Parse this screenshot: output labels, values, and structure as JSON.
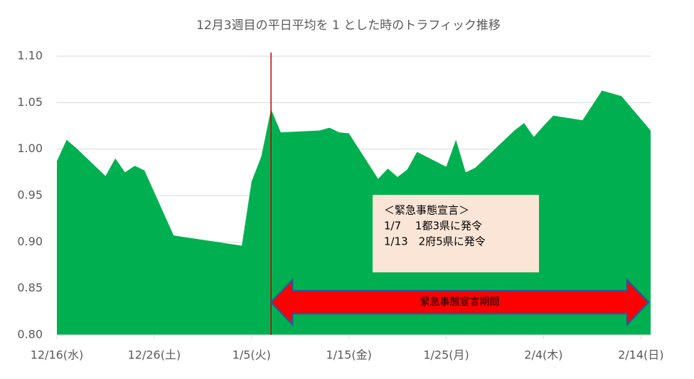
{
  "chart_data": {
    "type": "area",
    "title": "12月3週目の平日平均を 1 とした時のトラフィック推移",
    "x": [
      "12/16",
      "12/17",
      "12/18",
      "12/21",
      "12/22",
      "12/23",
      "12/24",
      "12/25",
      "12/28",
      "1/4",
      "1/5",
      "1/6",
      "1/7",
      "1/8",
      "1/12",
      "1/13",
      "1/14",
      "1/15",
      "1/18",
      "1/19",
      "1/20",
      "1/21",
      "1/22",
      "1/25",
      "1/26",
      "1/27",
      "1/28",
      "2/1",
      "2/2",
      "2/3",
      "2/4",
      "2/5",
      "2/8",
      "2/9",
      "2/10",
      "2/12",
      "2/15"
    ],
    "values": [
      0.987,
      1.01,
      1.001,
      0.971,
      0.99,
      0.975,
      0.982,
      0.977,
      0.907,
      0.896,
      0.965,
      0.992,
      1.043,
      1.018,
      1.02,
      1.023,
      1.018,
      1.017,
      0.968,
      0.979,
      0.97,
      0.978,
      0.997,
      0.981,
      1.01,
      0.975,
      0.98,
      1.02,
      1.028,
      1.013,
      1.025,
      1.036,
      1.031,
      1.047,
      1.063,
      1.057,
      1.02
    ],
    "color": "#00b050",
    "ylim": [
      0.8,
      1.1
    ],
    "yticks": [
      {
        "value": 0.8,
        "label": "0.80"
      },
      0.85,
      {
        "value": 0.9,
        "label": "0.90"
      },
      0.95,
      {
        "value": 1.0,
        "label": "1.00"
      },
      1.05,
      {
        "value": 1.1,
        "label": "1.10"
      }
    ],
    "xticks": [
      {
        "value": "12/16",
        "label": "12/16(水)"
      },
      {
        "value": "12/26",
        "label": "12/26(土)"
      },
      {
        "value": "1/5",
        "label": "1/5(火)"
      },
      {
        "value": "1/15",
        "label": "1/15(金)"
      },
      {
        "value": "1/25",
        "label": "1/25(月)"
      },
      {
        "value": "2/4",
        "label": "2/4(木)"
      },
      {
        "value": "2/14",
        "label": "2/14(日)"
      }
    ],
    "grid": true,
    "marker_line": {
      "x": "1/7",
      "color": "#c00000"
    },
    "annotation": {
      "lines": [
        "＜緊急事態宣言＞",
        "1/7　 1都3県に発令",
        "1/13　2府5県に発令"
      ]
    },
    "period_arrow": {
      "label": "緊急事態宣言期間",
      "color": "#ff0000"
    }
  }
}
